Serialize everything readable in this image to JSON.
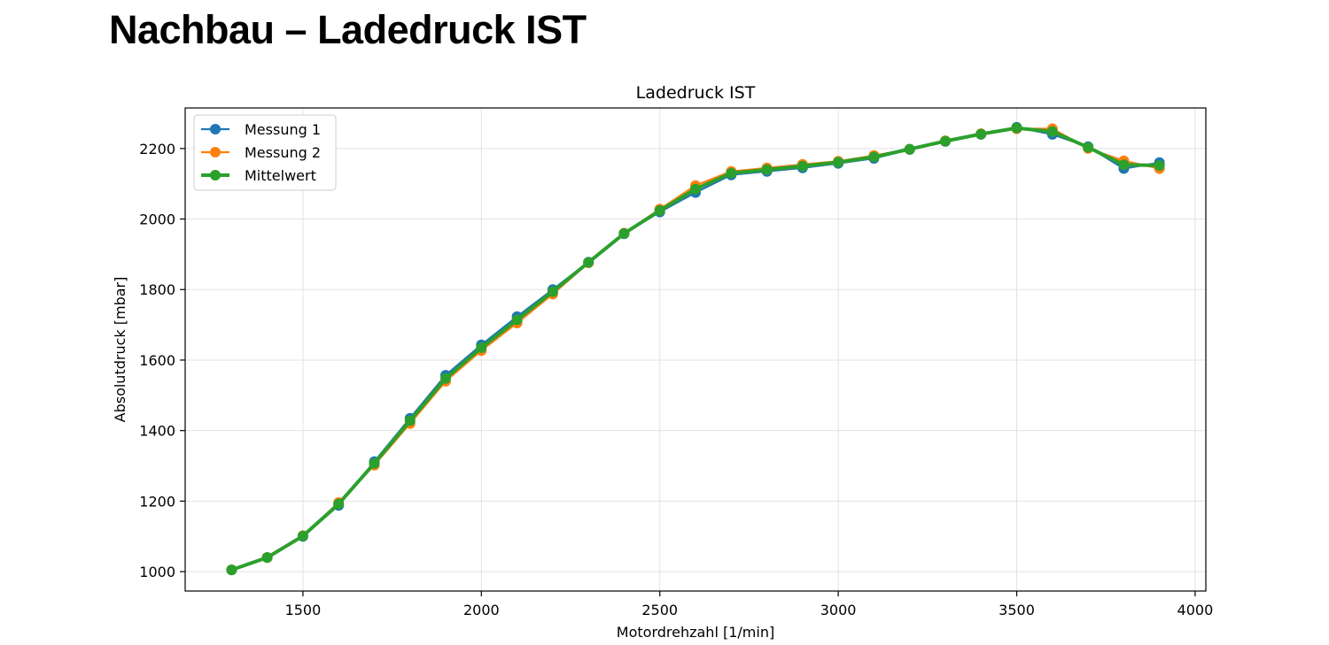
{
  "page": {
    "title": "Nachbau – Ladedruck IST"
  },
  "chart_data": {
    "type": "line",
    "title": "Ladedruck IST",
    "xlabel": "Motordrehzahl [1/min]",
    "ylabel": "Absolutdruck [mbar]",
    "xlim": [
      1170,
      4030
    ],
    "ylim": [
      945,
      2315
    ],
    "xticks": [
      1500,
      2000,
      2500,
      3000,
      3500,
      4000
    ],
    "yticks": [
      1000,
      1200,
      1400,
      1600,
      1800,
      2000,
      2200
    ],
    "grid": true,
    "legend_position": "upper left",
    "x": [
      1300,
      1400,
      1500,
      1600,
      1700,
      1800,
      1900,
      2000,
      2100,
      2200,
      2300,
      2400,
      2500,
      2600,
      2700,
      2800,
      2900,
      3000,
      3100,
      3200,
      3300,
      3400,
      3500,
      3600,
      3700,
      3800,
      3900
    ],
    "series": [
      {
        "name": "Messung 1",
        "color": "#1f77b4",
        "values": [
          1005,
          1040,
          1100,
          1188,
          1312,
          1435,
          1557,
          1643,
          1723,
          1800,
          1878,
          1958,
          2020,
          2075,
          2125,
          2135,
          2145,
          2158,
          2172,
          2197,
          2220,
          2240,
          2260,
          2240,
          2205,
          2143,
          2160
        ]
      },
      {
        "name": "Messung 2",
        "color": "#ff7f0e",
        "values": [
          1005,
          1040,
          1102,
          1196,
          1302,
          1420,
          1540,
          1627,
          1705,
          1787,
          1876,
          1960,
          2028,
          2095,
          2135,
          2145,
          2155,
          2164,
          2180,
          2198,
          2222,
          2242,
          2256,
          2256,
          2200,
          2165,
          2143
        ]
      },
      {
        "name": "Mittelwert",
        "color": "#2ca02c",
        "values": [
          1005,
          1040,
          1101,
          1192,
          1307,
          1428,
          1548,
          1635,
          1714,
          1794,
          1877,
          1959,
          2024,
          2085,
          2130,
          2140,
          2150,
          2161,
          2176,
          2198,
          2221,
          2241,
          2258,
          2248,
          2203,
          2154,
          2152
        ]
      }
    ]
  }
}
